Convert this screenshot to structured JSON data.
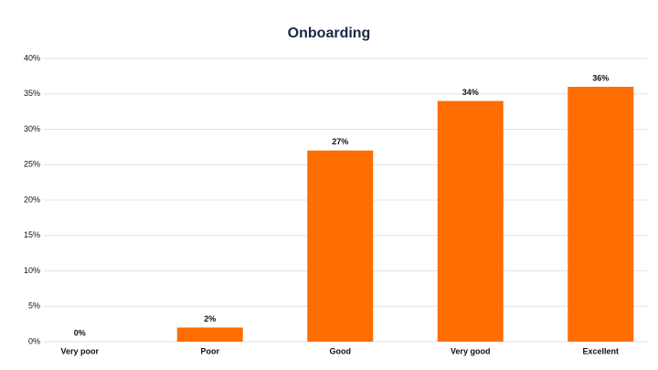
{
  "chart_data": {
    "type": "bar",
    "title": "Onboarding",
    "categories": [
      "Very poor",
      "Poor",
      "Good",
      "Very good",
      "Excellent"
    ],
    "values": [
      0,
      2,
      27,
      34,
      36
    ],
    "value_labels": [
      "0%",
      "2%",
      "27%",
      "34%",
      "36%"
    ],
    "color": "#ff6d00",
    "ylim": [
      0,
      40
    ],
    "yticks": [
      {
        "value": 0,
        "label": "0%"
      },
      {
        "value": 5,
        "label": "5%"
      },
      {
        "value": 10,
        "label": "10%"
      },
      {
        "value": 15,
        "label": "15%"
      },
      {
        "value": 20,
        "label": "20%"
      },
      {
        "value": 25,
        "label": "25%"
      },
      {
        "value": 30,
        "label": "30%"
      },
      {
        "value": 35,
        "label": "35%"
      },
      {
        "value": 40,
        "label": "40%"
      }
    ],
    "grid": true
  }
}
